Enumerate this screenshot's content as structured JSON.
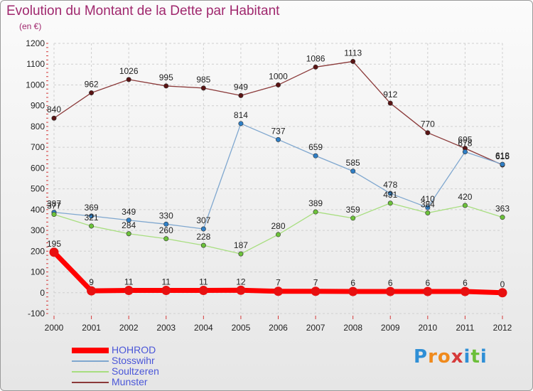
{
  "title": "Evolution du Montant de la Dette par Habitant",
  "unit_label": "(en €)",
  "logo": {
    "letters": [
      "P",
      "r",
      "o",
      "x",
      "i",
      "t",
      "i"
    ],
    "colors": [
      "#2f8fd6",
      "#f08a1c",
      "#f08a1c",
      "#d63a3a",
      "#2f8fd6",
      "#6cbf3a",
      "#2f8fd6"
    ]
  },
  "chart_data": {
    "type": "line",
    "x": [
      "2000",
      "2001",
      "2002",
      "2003",
      "2004",
      "2005",
      "2006",
      "2007",
      "2008",
      "2009",
      "2010",
      "2011",
      "2012"
    ],
    "ylim": [
      -100,
      1200
    ],
    "yticks": [
      "-100",
      "0",
      "100",
      "200",
      "300",
      "400",
      "500",
      "600",
      "700",
      "800",
      "900",
      "1000",
      "1100",
      "1200"
    ],
    "grid": true,
    "legend_position": "bottom-left",
    "series": [
      {
        "name": "HOHROD",
        "color": "#ff0000",
        "point_color": "#e81010",
        "values": [
          195,
          9,
          11,
          11,
          11,
          12,
          7,
          7,
          6,
          6,
          6,
          6,
          0
        ],
        "labels": [
          "195",
          "9",
          "11",
          "11",
          "11",
          "12",
          "7",
          "7",
          "6",
          "6",
          "6",
          "6",
          "0"
        ]
      },
      {
        "name": "Stosswihr",
        "color": "#7fa7cf",
        "point_color": "#2f7fc6",
        "values": [
          387,
          369,
          349,
          330,
          307,
          814,
          737,
          659,
          585,
          478,
          410,
          678,
          618
        ],
        "labels": [
          "387",
          "369",
          "349",
          "330",
          "307",
          "814",
          "737",
          "659",
          "585",
          "478",
          "410",
          "678",
          "618"
        ]
      },
      {
        "name": "Soultzeren",
        "color": "#a8de80",
        "point_color": "#6cc23a",
        "values": [
          377,
          321,
          284,
          260,
          228,
          187,
          280,
          389,
          359,
          431,
          384,
          420,
          363
        ],
        "labels": [
          "377",
          "321",
          "284",
          "260",
          "228",
          "187",
          "280",
          "389",
          "359",
          "431",
          "384",
          "420",
          "363"
        ]
      },
      {
        "name": "Munster",
        "color": "#8b3a3a",
        "point_color": "#5a1414",
        "values": [
          840,
          962,
          1026,
          995,
          985,
          949,
          1000,
          1086,
          1113,
          912,
          770,
          695,
          615
        ],
        "labels": [
          "840",
          "962",
          "1026",
          "995",
          "985",
          "949",
          "1000",
          "1086",
          "1113",
          "912",
          "770",
          "695",
          "615"
        ]
      }
    ]
  }
}
